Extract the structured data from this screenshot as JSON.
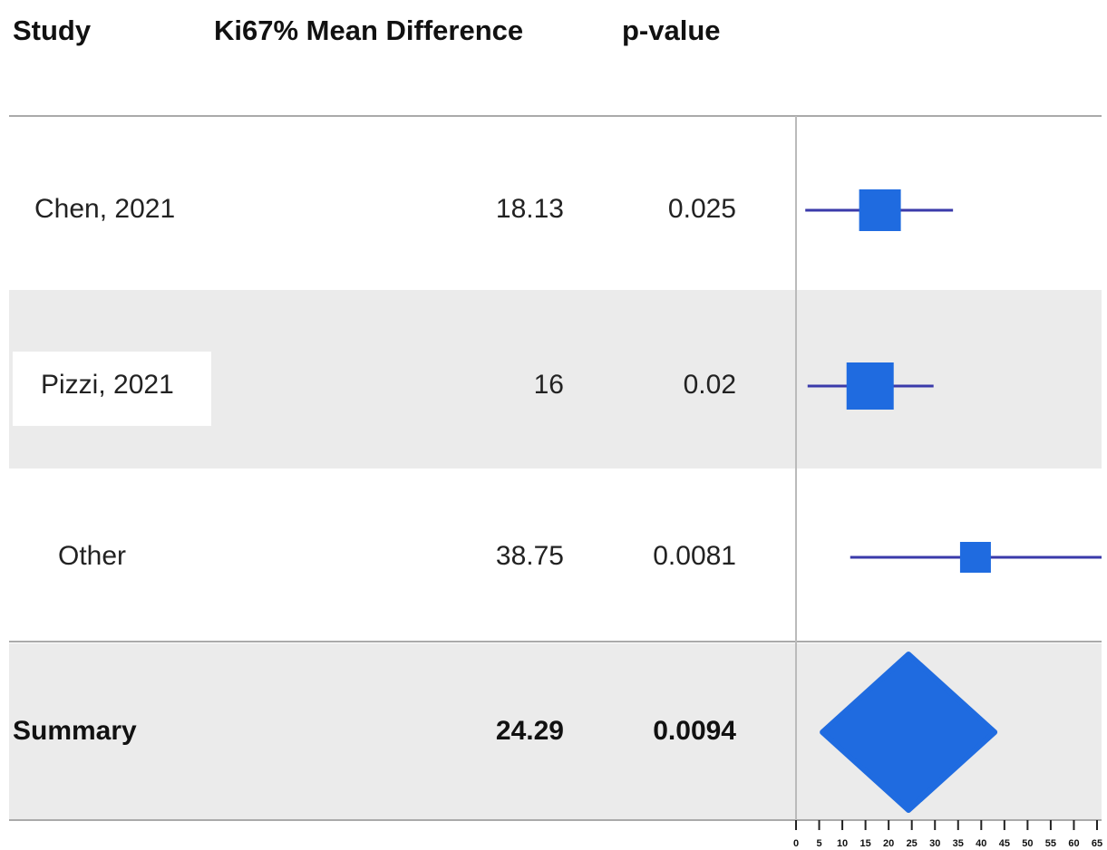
{
  "chart_data": {
    "type": "forest",
    "headers": [
      "Study",
      "Ki67% Mean Difference",
      "p-value"
    ],
    "categories": [
      "Chen, 2021",
      "Pizzi, 2021",
      "Other"
    ],
    "values": [
      18.13,
      16,
      38.75
    ],
    "lower": [
      2.0,
      2.5,
      11.7
    ],
    "upper": [
      33.9,
      29.7,
      66
    ],
    "p_values": [
      0.025,
      0.02,
      0.0081
    ],
    "summary": {
      "name": "Summary",
      "value": 24.29,
      "p_value": 0.0094,
      "lower": 5.7,
      "upper": 42.9
    },
    "color": "#1f6be0",
    "line_color": "#3a3aaa",
    "xlim": [
      0,
      65
    ],
    "xticks": [
      0,
      5,
      10,
      15,
      20,
      25,
      30,
      35,
      40,
      45,
      50,
      55,
      60,
      65
    ]
  }
}
